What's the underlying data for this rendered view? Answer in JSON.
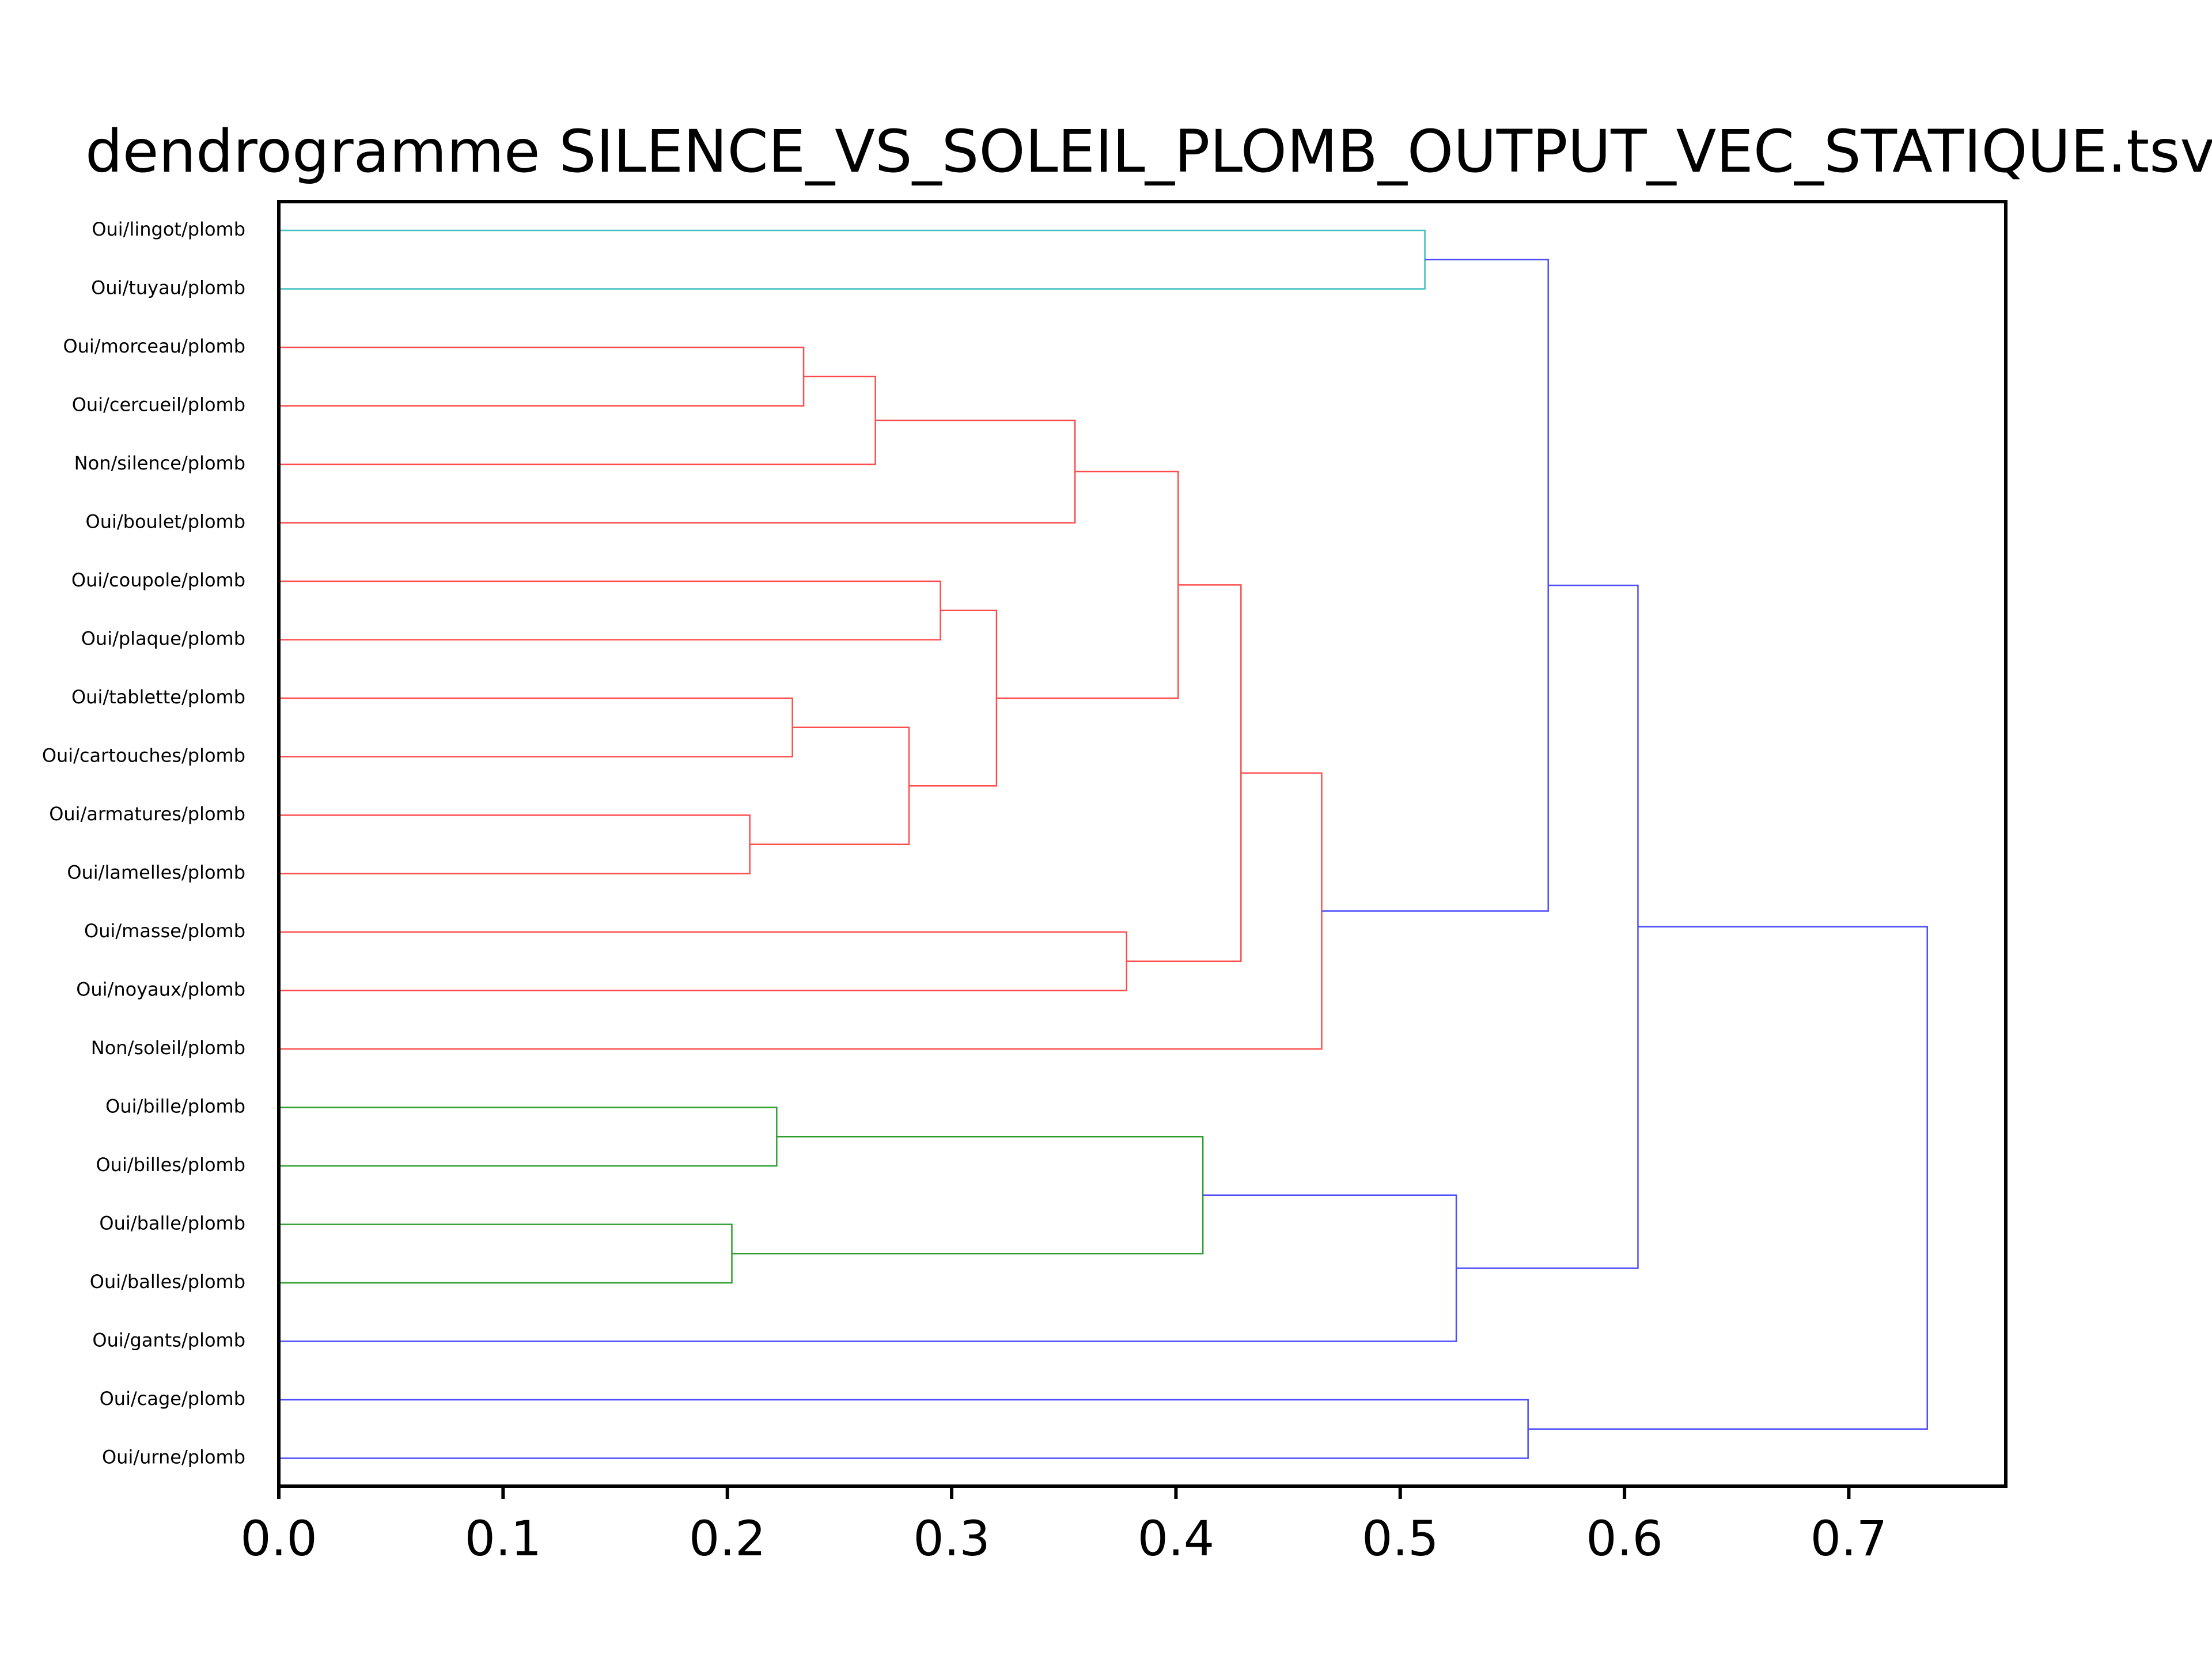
{
  "chart_data": {
    "type": "dendrogram",
    "orientation": "horizontal",
    "title": "dendrogramme SILENCE_VS_SOLEIL_PLOMB_OUTPUT_VEC_STATIQUE.tsv",
    "xlabel": "",
    "ylabel": "",
    "xlim": [
      0,
      0.77
    ],
    "x_ticks": [
      0.0,
      0.1,
      0.2,
      0.3,
      0.4,
      0.5,
      0.6,
      0.7
    ],
    "x_tick_labels": [
      "0.0",
      "0.1",
      "0.2",
      "0.3",
      "0.4",
      "0.5",
      "0.6",
      "0.7"
    ],
    "grid": false,
    "leaves": [
      "Oui/lingot/plomb",
      "Oui/tuyau/plomb",
      "Oui/morceau/plomb",
      "Oui/cercueil/plomb",
      "Non/silence/plomb",
      "Oui/boulet/plomb",
      "Oui/coupole/plomb",
      "Oui/plaque/plomb",
      "Oui/tablette/plomb",
      "Oui/cartouches/plomb",
      "Oui/armatures/plomb",
      "Oui/lamelles/plomb",
      "Oui/masse/plomb",
      "Oui/noyaux/plomb",
      "Non/soleil/plomb",
      "Oui/bille/plomb",
      "Oui/billes/plomb",
      "Oui/balle/plomb",
      "Oui/balles/plomb",
      "Oui/gants/plomb",
      "Oui/cage/plomb",
      "Oui/urne/plomb"
    ],
    "colors": {
      "cyan": "#3fbfbf",
      "red": "#ff4d4d",
      "green": "#2e9e2e",
      "blue": "#4d4dff",
      "axis": "#000000"
    },
    "merges": [
      {
        "id": "m1",
        "left": "L0",
        "right": "L1",
        "height": 0.511,
        "color": "cyan"
      },
      {
        "id": "m2",
        "left": "L2",
        "right": "L3",
        "height": 0.234,
        "color": "red"
      },
      {
        "id": "m3",
        "left": "m2",
        "right": "L4",
        "height": 0.266,
        "color": "red"
      },
      {
        "id": "m4",
        "left": "m3",
        "right": "L5",
        "height": 0.355,
        "color": "red"
      },
      {
        "id": "m5",
        "left": "L6",
        "right": "L7",
        "height": 0.295,
        "color": "red"
      },
      {
        "id": "m6",
        "left": "L8",
        "right": "L9",
        "height": 0.229,
        "color": "red"
      },
      {
        "id": "m7",
        "left": "L10",
        "right": "L11",
        "height": 0.21,
        "color": "red"
      },
      {
        "id": "m8",
        "left": "m6",
        "right": "m7",
        "height": 0.281,
        "color": "red"
      },
      {
        "id": "m9",
        "left": "m5",
        "right": "m8",
        "height": 0.32,
        "color": "red"
      },
      {
        "id": "m10",
        "left": "m4",
        "right": "m9",
        "height": 0.401,
        "color": "red"
      },
      {
        "id": "m11",
        "left": "L12",
        "right": "L13",
        "height": 0.378,
        "color": "red"
      },
      {
        "id": "m12",
        "left": "m10",
        "right": "m11",
        "height": 0.429,
        "color": "red"
      },
      {
        "id": "m13",
        "left": "m12",
        "right": "L14",
        "height": 0.465,
        "color": "red"
      },
      {
        "id": "m14",
        "left": "m1",
        "right": "m13",
        "height": 0.566,
        "color": "blue"
      },
      {
        "id": "m15",
        "left": "L15",
        "right": "L16",
        "height": 0.222,
        "color": "green"
      },
      {
        "id": "m16",
        "left": "L17",
        "right": "L18",
        "height": 0.202,
        "color": "green"
      },
      {
        "id": "m17",
        "left": "m15",
        "right": "m16",
        "height": 0.412,
        "color": "green"
      },
      {
        "id": "m18",
        "left": "m17",
        "right": "L19",
        "height": 0.525,
        "color": "blue"
      },
      {
        "id": "m19",
        "left": "m14",
        "right": "m18",
        "height": 0.606,
        "color": "blue"
      },
      {
        "id": "m20",
        "left": "L20",
        "right": "L21",
        "height": 0.557,
        "color": "blue"
      },
      {
        "id": "m21",
        "left": "m19",
        "right": "m20",
        "height": 0.735,
        "color": "blue"
      }
    ]
  }
}
